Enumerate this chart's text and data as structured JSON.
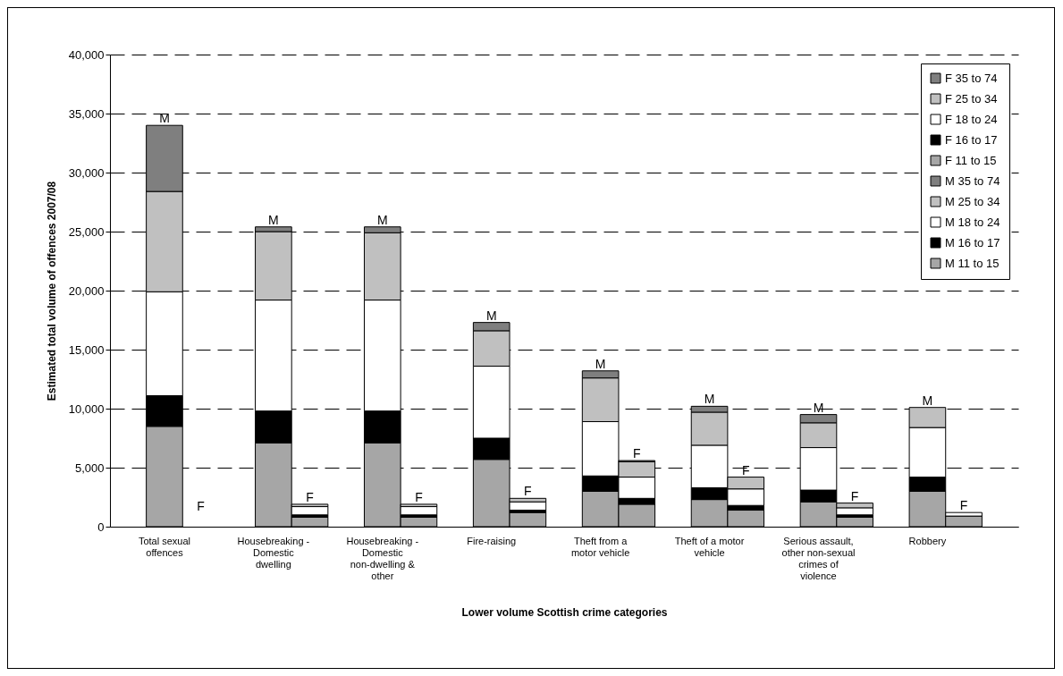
{
  "chart_data": {
    "type": "bar",
    "stacked": true,
    "xlabel": "Lower volume Scottish crime categories",
    "ylabel": "Estimated total volume of offences 2007/08",
    "categories": [
      "Total sexual offences",
      null,
      "Housebreaking - Domestic dwelling",
      null,
      "Housebreaking - Domestic non-dwelling & other",
      null,
      "Fire-raising",
      null,
      "Theft from a motor vehicle",
      null,
      "Theft of a motor vehicle",
      null,
      "Serious assault, other non-sexual crimes of violence",
      null,
      "Robbery",
      null
    ],
    "series": [
      {
        "name": "M 11 to 15",
        "color": "#a6a6a6",
        "values": [
          8500,
          null,
          7100,
          null,
          7100,
          null,
          5700,
          null,
          3000,
          null,
          2300,
          null,
          2100,
          null,
          3000,
          null
        ]
      },
      {
        "name": "M 16 to 17",
        "color": "#000000",
        "values": [
          2600,
          null,
          2700,
          null,
          2700,
          null,
          1800,
          null,
          1300,
          null,
          1000,
          null,
          1000,
          null,
          1200,
          null
        ]
      },
      {
        "name": "M 18 to 24",
        "color": "#ffffff",
        "values": [
          8800,
          null,
          9400,
          null,
          9400,
          null,
          6100,
          null,
          4600,
          null,
          3600,
          null,
          3600,
          null,
          4200,
          null
        ]
      },
      {
        "name": "M 25 to 34",
        "color": "#c0c0c0",
        "values": [
          8500,
          null,
          5800,
          null,
          5700,
          null,
          3000,
          null,
          3700,
          null,
          2800,
          null,
          2100,
          null,
          1700,
          null
        ]
      },
      {
        "name": "M 35 to 74",
        "color": "#7f7f7f",
        "values": [
          5600,
          null,
          400,
          null,
          500,
          null,
          700,
          null,
          600,
          null,
          500,
          null,
          700,
          null,
          0,
          null
        ]
      },
      {
        "name": "F 11 to 15",
        "color": "#a6a6a6",
        "values": [
          null,
          0,
          null,
          800,
          null,
          800,
          null,
          1200,
          null,
          1900,
          null,
          1400,
          null,
          800,
          null,
          900
        ]
      },
      {
        "name": "F 16 to 17",
        "color": "#000000",
        "values": [
          null,
          0,
          null,
          200,
          null,
          200,
          null,
          200,
          null,
          500,
          null,
          400,
          null,
          200,
          null,
          0
        ]
      },
      {
        "name": "F 18 to 24",
        "color": "#ffffff",
        "values": [
          null,
          0,
          null,
          700,
          null,
          700,
          null,
          700,
          null,
          1800,
          null,
          1400,
          null,
          600,
          null,
          300
        ]
      },
      {
        "name": "F 25 to 34",
        "color": "#c0c0c0",
        "values": [
          null,
          0,
          null,
          200,
          null,
          200,
          null,
          300,
          null,
          1300,
          null,
          1000,
          null,
          400,
          null,
          0
        ]
      },
      {
        "name": "F 35 to 74",
        "color": "#7f7f7f",
        "values": [
          null,
          0,
          null,
          0,
          null,
          0,
          null,
          0,
          null,
          100,
          null,
          0,
          null,
          0,
          null,
          0
        ]
      }
    ],
    "annotations": [
      {
        "text": "M",
        "x": "Total sexual offences",
        "y": 34000
      },
      "F",
      {
        "text": "M",
        "x": "Housebreaking - Domestic dwelling",
        "y": 25400
      },
      {
        "text": "F",
        "y": 1900
      },
      {
        "text": "M",
        "x": "Housebreaking - Domestic non-dwelling & other",
        "y": 25400
      },
      {
        "text": "F",
        "y": 1900
      },
      {
        "text": "M",
        "x": "Fire-raising",
        "y": 17300
      },
      {
        "text": "F",
        "y": 2400
      },
      {
        "text": "M",
        "x": "Theft from a motor vehicle",
        "y": 13200
      },
      {
        "text": "F",
        "y": 5600
      },
      {
        "text": "M",
        "x": "Theft of a motor vehicle",
        "y": 10200
      },
      {
        "text": "F",
        "y": 4200
      },
      {
        "text": "M",
        "x": "Serious assault, other non-sexual crimes of violence",
        "y": 9500
      },
      {
        "text": "F",
        "y": 2000
      },
      {
        "text": "M",
        "x": "Robbery",
        "y": 10100
      },
      {
        "text": "F",
        "y": 1200
      }
    ],
    "ylim": [
      0,
      40000
    ],
    "yticks": [
      {
        "value": 0,
        "label": "0"
      },
      {
        "value": 5000,
        "label": "5,000"
      },
      {
        "value": 10000,
        "label": "10,000"
      },
      {
        "value": 15000,
        "label": "15,000"
      },
      {
        "value": 20000,
        "label": "20,000"
      },
      {
        "value": 25000,
        "label": "25,000"
      },
      {
        "value": 30000,
        "label": "30,000"
      },
      {
        "value": 35000,
        "label": "35,000"
      },
      {
        "value": 40000,
        "label": "40,000"
      }
    ],
    "grid": "y",
    "legend": "top right"
  }
}
